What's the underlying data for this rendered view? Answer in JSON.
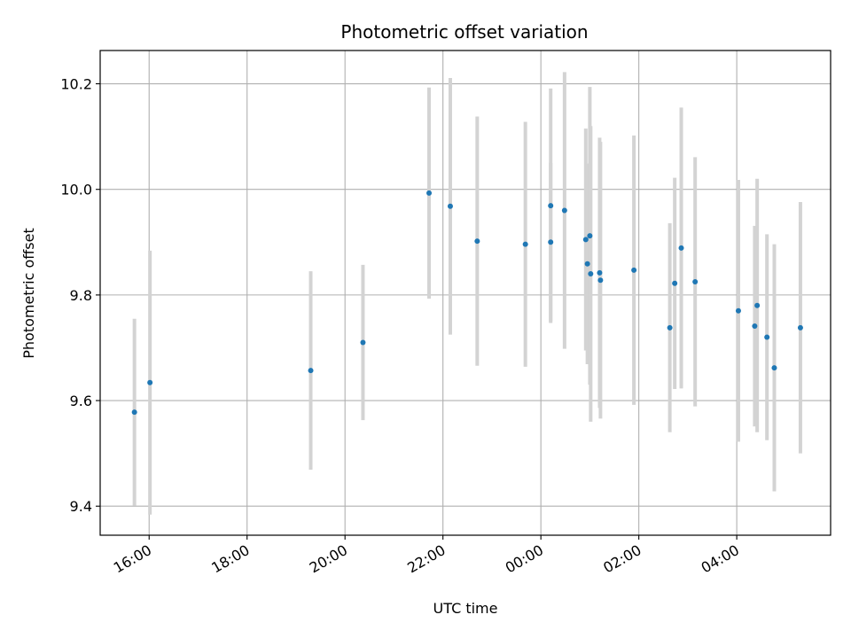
{
  "chart_data": {
    "type": "scatter",
    "title": "Photometric offset variation",
    "xlabel": "UTC time",
    "ylabel": "Photometric offset",
    "x_is_time": true,
    "xlim": [
      "15:00",
      "05:55"
    ],
    "ylim": [
      9.345,
      10.263
    ],
    "yticks": [
      9.4,
      9.6,
      9.8,
      10.0,
      10.2
    ],
    "ytick_labels": [
      "9.4",
      "9.6",
      "9.8",
      "10.0",
      "10.2"
    ],
    "xticks": [
      "16:00",
      "18:00",
      "20:00",
      "22:00",
      "00:00",
      "02:00",
      "04:00"
    ],
    "grid": true,
    "colors": {
      "point": "#1f77b4",
      "errorbar": "#d3d3d3",
      "grid": "#b0b0b0"
    },
    "points": [
      {
        "x": "15:42",
        "y": 9.578,
        "err": 0.177
      },
      {
        "x": "16:01",
        "y": 9.634,
        "err": 0.25
      },
      {
        "x": "19:18",
        "y": 9.657,
        "err": 0.188
      },
      {
        "x": "20:22",
        "y": 9.71,
        "err": 0.147
      },
      {
        "x": "21:43",
        "y": 9.993,
        "err": 0.2
      },
      {
        "x": "22:09",
        "y": 9.968,
        "err": 0.243
      },
      {
        "x": "22:42",
        "y": 9.902,
        "err": 0.236
      },
      {
        "x": "23:41",
        "y": 9.896,
        "err": 0.232
      },
      {
        "x": "00:12",
        "y": 9.969,
        "err": 0.222
      },
      {
        "x": "00:12",
        "y": 9.9,
        "err": 0.15
      },
      {
        "x": "00:29",
        "y": 9.96,
        "err": 0.262
      },
      {
        "x": "00:55",
        "y": 9.905,
        "err": 0.21
      },
      {
        "x": "00:57",
        "y": 9.859,
        "err": 0.19
      },
      {
        "x": "01:00",
        "y": 9.912,
        "err": 0.282
      },
      {
        "x": "01:01",
        "y": 9.84,
        "err": 0.28
      },
      {
        "x": "01:12",
        "y": 9.842,
        "err": 0.256
      },
      {
        "x": "01:13",
        "y": 9.828,
        "err": 0.262
      },
      {
        "x": "01:54",
        "y": 9.847,
        "err": 0.255
      },
      {
        "x": "02:38",
        "y": 9.738,
        "err": 0.198
      },
      {
        "x": "02:44",
        "y": 9.822,
        "err": 0.2
      },
      {
        "x": "02:52",
        "y": 9.889,
        "err": 0.266
      },
      {
        "x": "03:09",
        "y": 9.825,
        "err": 0.236
      },
      {
        "x": "04:02",
        "y": 9.77,
        "err": 0.248
      },
      {
        "x": "04:22",
        "y": 9.741,
        "err": 0.19
      },
      {
        "x": "04:25",
        "y": 9.78,
        "err": 0.24
      },
      {
        "x": "04:37",
        "y": 9.72,
        "err": 0.195
      },
      {
        "x": "04:46",
        "y": 9.662,
        "err": 0.234
      },
      {
        "x": "05:18",
        "y": 9.738,
        "err": 0.238
      }
    ]
  }
}
